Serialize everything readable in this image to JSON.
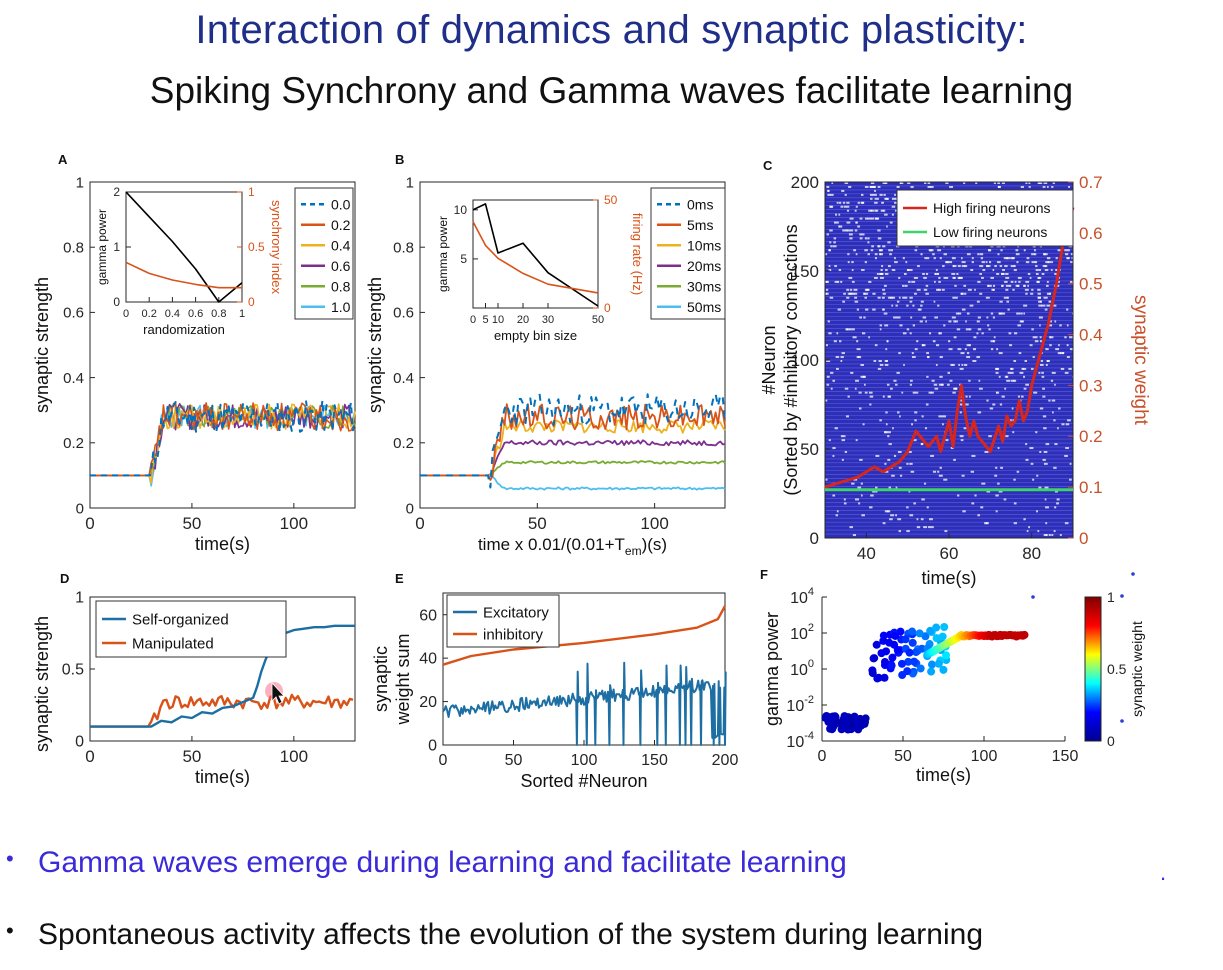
{
  "slide": {
    "title": "Interaction of dynamics and synaptic plasticity:",
    "subtitle": "Spiking Synchrony and Gamma waves facilitate learning",
    "bullets": [
      "Gamma waves emerge during learning and facilitate learning",
      "Spontaneous activity affects the evolution of the system during learning"
    ],
    "bullet_marker": "•",
    "colors": {
      "title": "#1f2e88",
      "bullet1": "#3a2ad8",
      "bullet2": "#111111"
    }
  },
  "chart_data": [
    {
      "panel": "A",
      "type": "line",
      "xlabel": "time(s)",
      "ylabel": "synaptic strength",
      "xlim": [
        0,
        130
      ],
      "ylim": [
        0,
        1
      ],
      "xticks": [
        0,
        50,
        100
      ],
      "yticks": [
        0,
        0.2,
        0.4,
        0.6,
        0.8,
        1
      ],
      "ytick_labels": [
        "0",
        "0.2",
        "0.4",
        "0.6",
        "0.8",
        "1"
      ],
      "series": [
        {
          "name": "0.0",
          "color": "#0072bd",
          "dashed": true,
          "baseline": 0.1,
          "level": 0.28,
          "noise": 0.05
        },
        {
          "name": "0.2",
          "color": "#d95319",
          "baseline": 0.1,
          "level": 0.28,
          "noise": 0.045
        },
        {
          "name": "0.4",
          "color": "#edb120",
          "baseline": 0.1,
          "level": 0.28,
          "noise": 0.04
        },
        {
          "name": "0.6",
          "color": "#7e2f8e",
          "baseline": 0.1,
          "level": 0.28,
          "noise": 0.04
        },
        {
          "name": "0.8",
          "color": "#77ac30",
          "baseline": 0.1,
          "level": 0.28,
          "noise": 0.035
        },
        {
          "name": "1.0",
          "color": "#4dbeee",
          "baseline": 0.1,
          "level": 0.28,
          "noise": 0.035
        }
      ],
      "onset": 30,
      "inset": {
        "type": "line",
        "xlabel": "randomization",
        "ylabel_left": "gamma power",
        "ylabel_right": "synchrony index",
        "xticks": [
          0,
          0.2,
          0.4,
          0.6,
          0.8,
          1
        ],
        "xtick_labels": [
          "0",
          "0.2",
          "0.4",
          "0.6",
          "0.8",
          "1"
        ],
        "yticks_left": [
          0,
          1,
          2
        ],
        "yticks_right": [
          0,
          0.5,
          1
        ],
        "ytick_labels_right": [
          "0",
          "0.5",
          "1"
        ],
        "xlim": [
          0,
          1
        ],
        "ylim_left": [
          0,
          2
        ],
        "ylim_right": [
          0,
          1
        ],
        "left_series": {
          "color": "#000000",
          "x": [
            0,
            0.2,
            0.4,
            0.6,
            0.8,
            1
          ],
          "y": [
            2.0,
            1.55,
            1.1,
            0.6,
            0.0,
            0.35
          ]
        },
        "right_series": {
          "color": "#d95319",
          "x": [
            0,
            0.2,
            0.4,
            0.6,
            0.8,
            1
          ],
          "y": [
            0.36,
            0.26,
            0.2,
            0.16,
            0.13,
            0.13
          ]
        }
      }
    },
    {
      "panel": "B",
      "type": "line",
      "xlabel": "time x 0.01/(0.01+T",
      "xlabel_sub": "em",
      "xlabel_end": ")(s)",
      "ylabel": "synaptic strength",
      "xlim": [
        0,
        130
      ],
      "ylim": [
        0,
        1
      ],
      "xticks": [
        0,
        50,
        100
      ],
      "yticks": [
        0,
        0.2,
        0.4,
        0.6,
        0.8,
        1
      ],
      "ytick_labels": [
        "0",
        "0.2",
        "0.4",
        "0.6",
        "0.8",
        "1"
      ],
      "series": [
        {
          "name": "0ms",
          "color": "#0072bd",
          "dashed": true,
          "baseline": 0.1,
          "level": 0.3,
          "noise": 0.05
        },
        {
          "name": "5ms",
          "color": "#d95319",
          "baseline": 0.1,
          "level": 0.28,
          "noise": 0.04
        },
        {
          "name": "10ms",
          "color": "#edb120",
          "baseline": 0.1,
          "level": 0.25,
          "noise": 0.02
        },
        {
          "name": "20ms",
          "color": "#7e2f8e",
          "baseline": 0.1,
          "level": 0.2,
          "noise": 0.008
        },
        {
          "name": "30ms",
          "color": "#77ac30",
          "baseline": 0.1,
          "level": 0.14,
          "noise": 0.004
        },
        {
          "name": "50ms",
          "color": "#4dbeee",
          "baseline": 0.1,
          "level": 0.06,
          "noise": 0.004
        }
      ],
      "onset": 30,
      "inset": {
        "type": "line",
        "xlabel": "empty bin size",
        "ylabel_left": "gamma power",
        "ylabel_right": "firing rate (Hz)",
        "xtick_labels": [
          "0",
          "5",
          "10",
          "20",
          "30",
          "50"
        ],
        "xticks": [
          0,
          5,
          10,
          20,
          30,
          50
        ],
        "yticks_left": [
          5,
          10
        ],
        "yticks_right": [
          0,
          50
        ],
        "xlim": [
          0,
          50
        ],
        "ylim_left": [
          0,
          10
        ],
        "ylim_right": [
          0,
          50
        ],
        "left_series": {
          "color": "#000000",
          "x": [
            0,
            5,
            10,
            20,
            30,
            50
          ],
          "y": [
            10,
            10.6,
            5.6,
            6.6,
            3.6,
            0.2
          ]
        },
        "right_series": {
          "color": "#d95319",
          "x": [
            0,
            5,
            10,
            20,
            30,
            50
          ],
          "y": [
            40,
            29,
            23,
            16,
            11,
            7
          ]
        }
      }
    },
    {
      "panel": "C",
      "type": "heatmap",
      "xlabel": "time(s)",
      "ylabel_lines": [
        "#Neuron",
        "(Sorted by #inhibitory connections"
      ],
      "ylabel_right": "synaptic weight",
      "xlim": [
        30,
        90
      ],
      "ylim": [
        0,
        200
      ],
      "ylim_right": [
        0,
        0.7
      ],
      "xticks": [
        40,
        60,
        80
      ],
      "yticks": [
        0,
        50,
        100,
        150,
        200
      ],
      "yticks_right": [
        0,
        0.1,
        0.2,
        0.3,
        0.4,
        0.5,
        0.6,
        0.7
      ],
      "ytick_labels_right": [
        "0",
        "0.1",
        "0.2",
        "0.3",
        "0.4",
        "0.5",
        "0.6",
        "0.7"
      ],
      "legend": [
        "High firing neurons",
        "Low firing neurons"
      ],
      "series": [
        {
          "name": "High firing neurons",
          "color": "#d7261e",
          "x": [
            30,
            34,
            38,
            40,
            42,
            44,
            46,
            48,
            50,
            52,
            53,
            55,
            57,
            58,
            60,
            61,
            62,
            63,
            64,
            65,
            66,
            67,
            68,
            70,
            72,
            73,
            74,
            75,
            76,
            77,
            78,
            79,
            80,
            82,
            84,
            86,
            88,
            90
          ],
          "y": [
            0.1,
            0.11,
            0.12,
            0.13,
            0.14,
            0.13,
            0.14,
            0.15,
            0.17,
            0.21,
            0.2,
            0.18,
            0.2,
            0.17,
            0.23,
            0.18,
            0.25,
            0.3,
            0.24,
            0.2,
            0.23,
            0.2,
            0.19,
            0.17,
            0.22,
            0.19,
            0.24,
            0.22,
            0.23,
            0.27,
            0.23,
            0.25,
            0.3,
            0.36,
            0.42,
            0.5,
            0.6,
            0.65
          ]
        },
        {
          "name": "Low firing neurons",
          "color": "#3fd36a",
          "x": [
            30,
            90
          ],
          "y": [
            0.095,
            0.095
          ]
        }
      ]
    },
    {
      "panel": "D",
      "type": "line",
      "xlabel": "time(s)",
      "ylabel": "synaptic strength",
      "xlim": [
        0,
        130
      ],
      "ylim": [
        0,
        1
      ],
      "xticks": [
        0,
        50,
        100
      ],
      "yticks": [
        0,
        0.5,
        1
      ],
      "ytick_labels": [
        "0",
        "0.5",
        "1"
      ],
      "legend": [
        "Self-organized",
        "Manipulated"
      ],
      "series": [
        {
          "name": "Self-organized",
          "color": "#1d6fa3",
          "x": [
            0,
            30,
            35,
            40,
            45,
            50,
            55,
            60,
            65,
            70,
            75,
            80,
            82,
            84,
            86,
            88,
            90,
            93,
            96,
            100,
            105,
            110,
            115,
            120,
            125,
            130
          ],
          "y": [
            0.1,
            0.1,
            0.14,
            0.13,
            0.17,
            0.16,
            0.2,
            0.19,
            0.23,
            0.24,
            0.27,
            0.3,
            0.38,
            0.48,
            0.56,
            0.63,
            0.68,
            0.72,
            0.75,
            0.77,
            0.78,
            0.79,
            0.79,
            0.8,
            0.8,
            0.8
          ]
        },
        {
          "name": "Manipulated",
          "color": "#d95319",
          "baseline": 0.1,
          "level": 0.27,
          "noise": 0.05
        }
      ],
      "onset": 30
    },
    {
      "panel": "E",
      "type": "line",
      "xlabel": "Sorted #Neuron",
      "ylabel_lines": [
        "synaptic",
        "weight sum"
      ],
      "xlim": [
        0,
        200
      ],
      "ylim": [
        0,
        70
      ],
      "xticks": [
        0,
        50,
        100,
        150,
        200
      ],
      "yticks": [
        0,
        20,
        40,
        60
      ],
      "legend": [
        "Excitatory",
        "inhibitory"
      ],
      "series": [
        {
          "name": "Excitatory",
          "color": "#1d6fa3",
          "start": 15,
          "end": 28,
          "noise": 3
        },
        {
          "name": "inhibitory",
          "color": "#d95319",
          "x": [
            0,
            20,
            50,
            100,
            150,
            180,
            195,
            200
          ],
          "y": [
            37,
            41,
            44,
            47,
            51,
            54,
            58,
            64
          ]
        }
      ],
      "drops_x": [
        95,
        102,
        108,
        118,
        128,
        140,
        152,
        158,
        168,
        172,
        176,
        183,
        192,
        196,
        200
      ]
    },
    {
      "panel": "F",
      "type": "scatter",
      "xlabel": "time(s)",
      "ylabel": "gamma power",
      "colorbar_label": "synaptic weight",
      "xlim": [
        0,
        150
      ],
      "ylim_log10": [
        -4,
        4
      ],
      "xticks": [
        0,
        50,
        100,
        150
      ],
      "yticks_log10": [
        -4,
        -2,
        0,
        2,
        4
      ],
      "colorbar_ticks": [
        0,
        0.5,
        1
      ],
      "colorbar_tick_labels": [
        "0",
        "0.5",
        "1"
      ],
      "colormap": [
        "#00008f",
        "#0000ff",
        "#00ffff",
        "#ffff00",
        "#ff0000",
        "#800000"
      ]
    }
  ]
}
